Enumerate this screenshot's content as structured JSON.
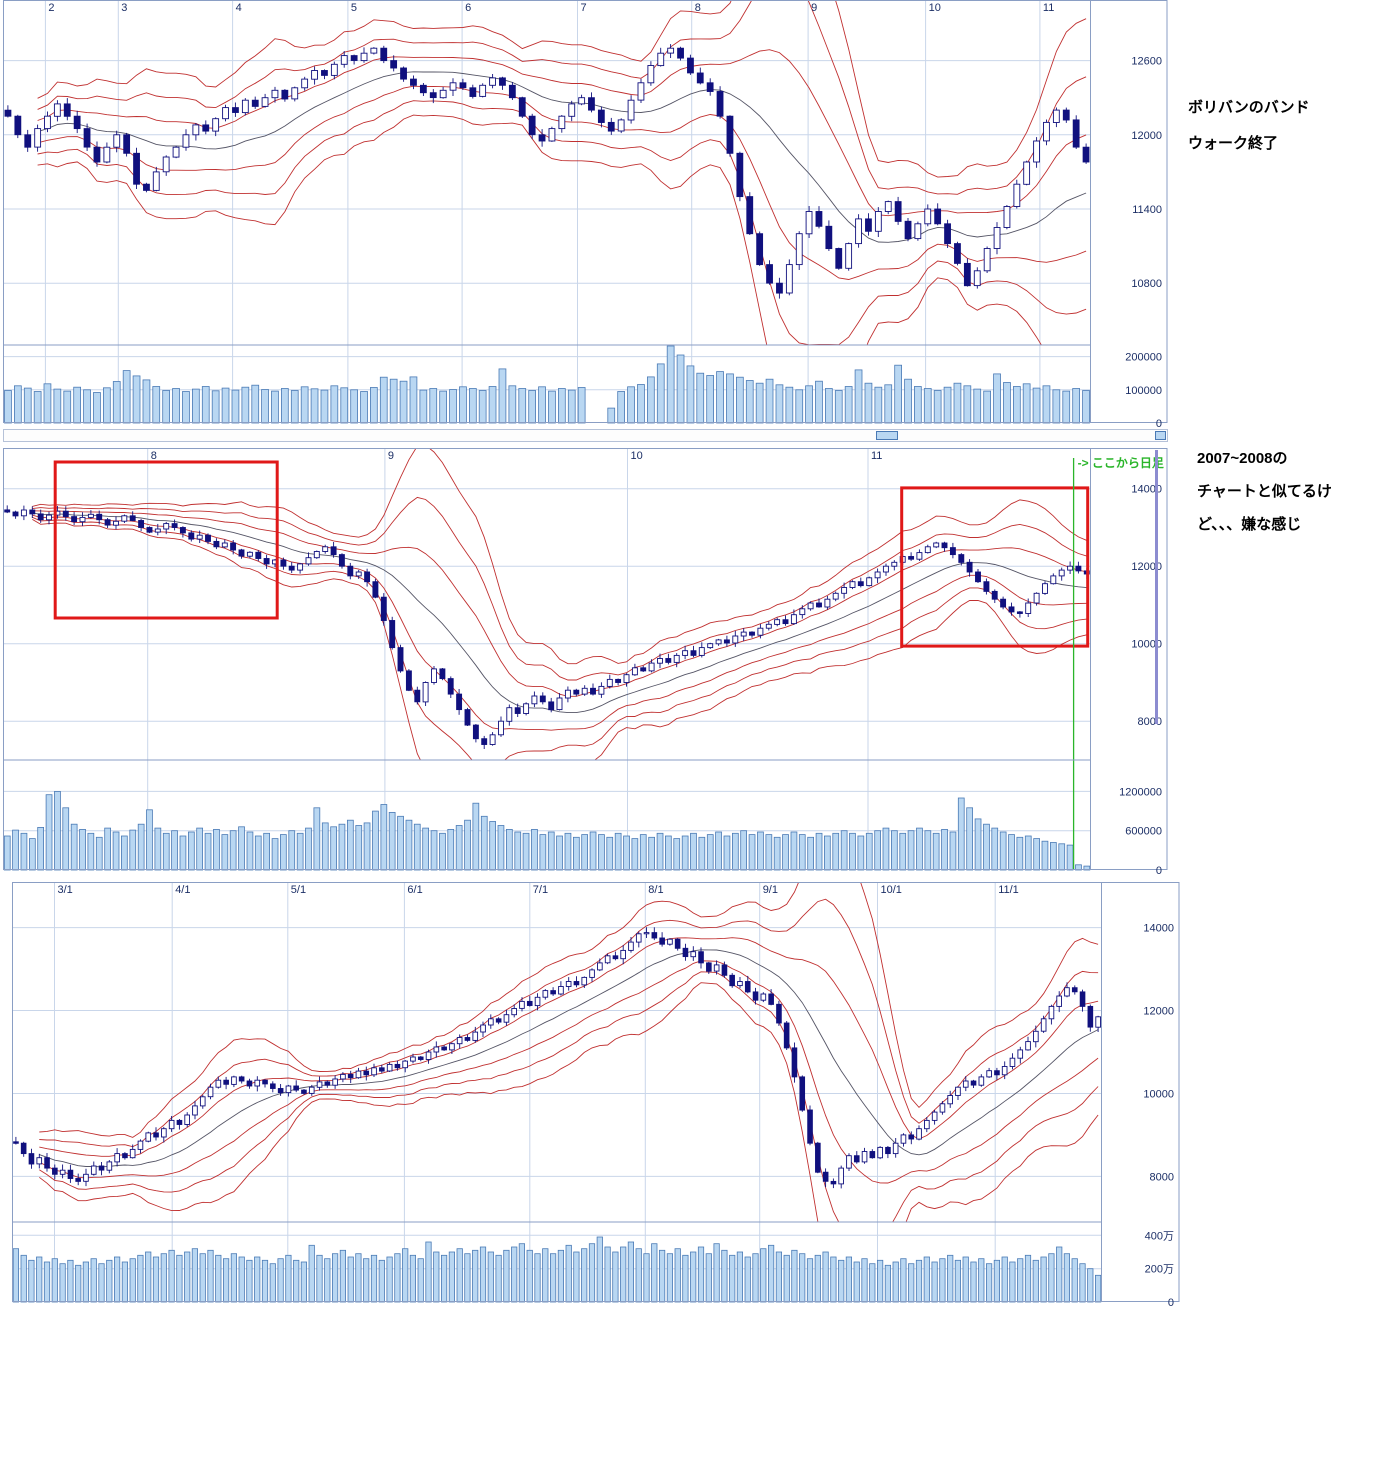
{
  "annotations": {
    "note1": [
      "ボリバンのバンド",
      "ウォーク終了"
    ],
    "note2": [
      "2007~2008の",
      "チャートと似てるけ",
      "ど、、、嫌な感じ"
    ]
  },
  "colors": {
    "candle": "#10107e",
    "band": "#c03030",
    "center": "#555566",
    "volume_fill": "#b9d7f2",
    "volume_stroke": "#4a7ab5",
    "grid": "#c9d6ea",
    "frame": "#8a9ec4",
    "tick_text": "#1c2f66",
    "highlight": "#e01818",
    "green": "#2ab52a"
  },
  "chart_data": [
    {
      "type": "candlestick",
      "x_ticks": [
        {
          "label": "2",
          "pos": 0.039
        },
        {
          "label": "3",
          "pos": 0.106
        },
        {
          "label": "4",
          "pos": 0.211
        },
        {
          "label": "5",
          "pos": 0.317
        },
        {
          "label": "6",
          "pos": 0.422
        },
        {
          "label": "7",
          "pos": 0.528
        },
        {
          "label": "8",
          "pos": 0.633
        },
        {
          "label": "9",
          "pos": 0.74
        },
        {
          "label": "10",
          "pos": 0.848
        },
        {
          "label": "11",
          "pos": 0.953
        }
      ],
      "y_ticks": [
        {
          "label": "12600",
          "value": 12600
        },
        {
          "label": "12000",
          "value": 12000
        },
        {
          "label": "11400",
          "value": 11400
        },
        {
          "label": "10800",
          "value": 10800
        }
      ],
      "volume_ticks": [
        {
          "label": "200000",
          "value": 200000
        },
        {
          "label": "100000",
          "value": 100000
        },
        {
          "label": "0",
          "value": 0
        }
      ],
      "price_range": [
        10300,
        13090
      ],
      "volume_max": 235000,
      "bands": {
        "period": 15,
        "sigmas": [
          1,
          2,
          3
        ]
      },
      "close": [
        12150,
        12000,
        11900,
        12050,
        12150,
        12250,
        12150,
        12050,
        11900,
        11780,
        11900,
        12000,
        11850,
        11600,
        11550,
        11700,
        11820,
        11900,
        12000,
        12080,
        12030,
        12130,
        12220,
        12180,
        12280,
        12230,
        12300,
        12360,
        12290,
        12380,
        12450,
        12520,
        12480,
        12570,
        12640,
        12600,
        12660,
        12700,
        12600,
        12540,
        12450,
        12400,
        12340,
        12300,
        12360,
        12420,
        12380,
        12310,
        12400,
        12460,
        12400,
        12300,
        12150,
        12000,
        11950,
        12050,
        12150,
        12250,
        12300,
        12200,
        12100,
        12030,
        12120,
        12280,
        12420,
        12560,
        12660,
        12700,
        12620,
        12500,
        12420,
        12350,
        12150,
        11850,
        11500,
        11200,
        10950,
        10800,
        10720,
        10950,
        11200,
        11380,
        11260,
        11080,
        10920,
        11120,
        11320,
        11220,
        11380,
        11460,
        11300,
        11160,
        11280,
        11400,
        11280,
        11120,
        10960,
        10780,
        10900,
        11080,
        11250,
        11420,
        11600,
        11780,
        11950,
        12100,
        12200,
        12120,
        11900,
        11780
      ],
      "volume": [
        98000,
        112000,
        105000,
        95000,
        118000,
        102000,
        96000,
        108000,
        100000,
        92000,
        106000,
        125000,
        158000,
        142000,
        130000,
        110000,
        98000,
        104000,
        95000,
        102000,
        110000,
        97000,
        105000,
        99000,
        108000,
        114000,
        101000,
        96000,
        104000,
        98000,
        109000,
        103000,
        99000,
        112000,
        106000,
        100000,
        95000,
        107000,
        138000,
        132000,
        126000,
        139000,
        99000,
        104000,
        96000,
        101000,
        109000,
        104000,
        98000,
        110000,
        163000,
        112000,
        104000,
        98000,
        109000,
        96000,
        104000,
        99000,
        107000,
        0,
        0,
        45000,
        95000,
        109000,
        116000,
        139000,
        178000,
        232000,
        205000,
        172000,
        150000,
        143000,
        155000,
        148000,
        138000,
        128000,
        120000,
        132000,
        115000,
        108000,
        100000,
        112000,
        126000,
        104000,
        98000,
        110000,
        160000,
        120000,
        108000,
        115000,
        174000,
        132000,
        110000,
        104000,
        98000,
        108000,
        120000,
        112000,
        102000,
        96000,
        148000,
        122000,
        110000,
        118000,
        105000,
        112000,
        100000,
        96000,
        104000,
        98000
      ]
    },
    {
      "type": "candlestick",
      "x_ticks": [
        {
          "label": "8",
          "pos": 0.133
        },
        {
          "label": "9",
          "pos": 0.351
        },
        {
          "label": "10",
          "pos": 0.574
        },
        {
          "label": "11",
          "pos": 0.795
        }
      ],
      "y_ticks": [
        {
          "label": "14000",
          "value": 14000
        },
        {
          "label": "12000",
          "value": 12000
        },
        {
          "label": "10000",
          "value": 10000
        },
        {
          "label": "8000",
          "value": 8000
        }
      ],
      "volume_ticks": [
        {
          "label": "1200000",
          "value": 1200000
        },
        {
          "label": "600000",
          "value": 600000
        },
        {
          "label": "0",
          "value": 0
        }
      ],
      "price_range": [
        7000,
        15050
      ],
      "volume_max": 1680000,
      "bands": {
        "period": 15,
        "sigmas": [
          1,
          2,
          3
        ]
      },
      "highlight_boxes": [
        {
          "x0": 0.048,
          "x1": 0.252,
          "y0": 0.045,
          "y1": 0.545
        },
        {
          "x0": 0.826,
          "x1": 0.997,
          "y0": 0.128,
          "y1": 0.635
        }
      ],
      "green_line": {
        "pos": 0.984,
        "label": "-> ここから日足"
      },
      "close": [
        13400,
        13300,
        13450,
        13350,
        13200,
        13320,
        13420,
        13280,
        13150,
        13260,
        13340,
        13200,
        13060,
        13160,
        13300,
        13180,
        13000,
        12880,
        12960,
        13100,
        13000,
        12860,
        12700,
        12800,
        12640,
        12500,
        12600,
        12420,
        12260,
        12360,
        12200,
        12060,
        12160,
        12000,
        11900,
        12060,
        12220,
        12380,
        12500,
        12300,
        12000,
        11750,
        11850,
        11600,
        11200,
        10600,
        9900,
        9300,
        8800,
        8500,
        9000,
        9350,
        9100,
        8700,
        8300,
        7900,
        7550,
        7400,
        7650,
        8000,
        8350,
        8200,
        8450,
        8650,
        8500,
        8300,
        8600,
        8800,
        8700,
        8850,
        8700,
        8900,
        9080,
        9000,
        9200,
        9380,
        9300,
        9500,
        9620,
        9520,
        9700,
        9820,
        9700,
        9900,
        10000,
        10100,
        10020,
        10200,
        10300,
        10220,
        10400,
        10500,
        10620,
        10520,
        10750,
        10900,
        11050,
        10950,
        11150,
        11300,
        11450,
        11600,
        11500,
        11700,
        11850,
        12000,
        12100,
        12250,
        12180,
        12350,
        12500,
        12600,
        12480,
        12300,
        12100,
        11850,
        11600,
        11350,
        11150,
        10950,
        10820,
        10780,
        11050,
        11300,
        11550,
        11750,
        11900,
        12000,
        11880,
        11800
      ],
      "volume": [
        520000,
        610000,
        560000,
        480000,
        650000,
        1150000,
        1200000,
        950000,
        700000,
        620000,
        560000,
        500000,
        640000,
        580000,
        520000,
        610000,
        700000,
        920000,
        640000,
        560000,
        600000,
        520000,
        580000,
        640000,
        560000,
        620000,
        540000,
        600000,
        660000,
        580000,
        520000,
        560000,
        480000,
        540000,
        600000,
        560000,
        640000,
        950000,
        720000,
        660000,
        700000,
        760000,
        680000,
        720000,
        900000,
        1000000,
        880000,
        820000,
        760000,
        700000,
        640000,
        600000,
        560000,
        620000,
        680000,
        760000,
        1020000,
        820000,
        740000,
        680000,
        620000,
        580000,
        560000,
        620000,
        540000,
        580000,
        520000,
        560000,
        500000,
        540000,
        580000,
        540000,
        500000,
        560000,
        520000,
        480000,
        540000,
        500000,
        560000,
        520000,
        480000,
        520000,
        560000,
        500000,
        540000,
        580000,
        520000,
        560000,
        600000,
        540000,
        580000,
        540000,
        500000,
        540000,
        580000,
        540000,
        500000,
        560000,
        520000,
        560000,
        600000,
        560000,
        520000,
        560000,
        600000,
        640000,
        600000,
        560000,
        600000,
        640000,
        600000,
        560000,
        620000,
        580000,
        1100000,
        950000,
        780000,
        700000,
        640000,
        580000,
        540000,
        500000,
        520000,
        480000,
        440000,
        420000,
        400000,
        380000,
        80000,
        60000
      ]
    },
    {
      "type": "candlestick",
      "x_ticks": [
        {
          "label": "3/1",
          "pos": 0.039
        },
        {
          "label": "4/1",
          "pos": 0.147
        },
        {
          "label": "5/1",
          "pos": 0.253
        },
        {
          "label": "6/1",
          "pos": 0.36
        },
        {
          "label": "7/1",
          "pos": 0.475
        },
        {
          "label": "8/1",
          "pos": 0.581
        },
        {
          "label": "9/1",
          "pos": 0.686
        },
        {
          "label": "10/1",
          "pos": 0.794
        },
        {
          "label": "11/1",
          "pos": 0.902
        }
      ],
      "y_ticks": [
        {
          "label": "14000",
          "value": 14000
        },
        {
          "label": "12000",
          "value": 12000
        },
        {
          "label": "10000",
          "value": 10000
        },
        {
          "label": "8000",
          "value": 8000
        }
      ],
      "volume_ticks": [
        {
          "label": "400万",
          "value": 4000000
        },
        {
          "label": "200万",
          "value": 2000000
        },
        {
          "label": "0",
          "value": 0
        }
      ],
      "price_range": [
        6900,
        15100
      ],
      "volume_max": 4800000,
      "bands": {
        "period": 15,
        "sigmas": [
          1,
          2,
          3
        ]
      },
      "close": [
        8800,
        8550,
        8300,
        8450,
        8200,
        8050,
        8150,
        7950,
        7880,
        8050,
        8250,
        8150,
        8350,
        8550,
        8450,
        8650,
        8850,
        9050,
        8950,
        9150,
        9350,
        9250,
        9480,
        9700,
        9920,
        10150,
        10320,
        10220,
        10400,
        10300,
        10180,
        10320,
        10230,
        10120,
        10020,
        10180,
        10080,
        10000,
        10150,
        10280,
        10200,
        10350,
        10460,
        10380,
        10540,
        10450,
        10620,
        10540,
        10700,
        10620,
        10780,
        10880,
        10820,
        11000,
        11120,
        11050,
        11200,
        11350,
        11280,
        11480,
        11650,
        11800,
        11720,
        11900,
        12050,
        12220,
        12120,
        12320,
        12480,
        12400,
        12580,
        12700,
        12620,
        12800,
        12980,
        13150,
        13320,
        13250,
        13450,
        13650,
        13850,
        13880,
        13750,
        13600,
        13720,
        13500,
        13300,
        13420,
        13150,
        12950,
        13100,
        12850,
        12600,
        12700,
        12450,
        12250,
        12400,
        12150,
        11700,
        11100,
        10400,
        9600,
        8800,
        8100,
        7880,
        7820,
        8200,
        8500,
        8350,
        8600,
        8450,
        8700,
        8550,
        8800,
        9000,
        8900,
        9150,
        9350,
        9550,
        9750,
        9950,
        10150,
        10300,
        10200,
        10400,
        10550,
        10450,
        10650,
        10850,
        11050,
        11250,
        11500,
        11800,
        12100,
        12350,
        12550,
        12450,
        12100,
        11600,
        11850
      ],
      "volume": [
        3200000,
        2800000,
        2500000,
        2700000,
        2400000,
        2600000,
        2300000,
        2500000,
        2200000,
        2400000,
        2600000,
        2300000,
        2500000,
        2700000,
        2400000,
        2600000,
        2800000,
        3000000,
        2700000,
        2900000,
        3100000,
        2800000,
        3000000,
        3200000,
        2900000,
        3100000,
        2800000,
        2600000,
        2900000,
        2700000,
        2500000,
        2700000,
        2500000,
        2300000,
        2600000,
        2800000,
        2500000,
        2400000,
        3400000,
        2800000,
        2600000,
        2900000,
        3100000,
        2700000,
        2900000,
        2600000,
        2800000,
        2500000,
        2700000,
        2900000,
        3200000,
        2800000,
        2600000,
        3600000,
        3000000,
        2800000,
        3000000,
        3200000,
        2900000,
        3100000,
        3300000,
        3000000,
        2800000,
        3100000,
        3300000,
        3500000,
        3100000,
        2900000,
        3200000,
        2900000,
        3100000,
        3400000,
        3000000,
        3200000,
        3500000,
        3900000,
        3300000,
        3000000,
        3300000,
        3600000,
        3200000,
        2900000,
        3500000,
        3100000,
        2900000,
        3200000,
        2800000,
        3000000,
        3300000,
        2900000,
        3500000,
        3100000,
        2800000,
        3000000,
        2700000,
        2900000,
        3200000,
        3400000,
        3000000,
        2800000,
        3100000,
        2900000,
        2600000,
        2800000,
        3000000,
        2700000,
        2500000,
        2700000,
        2400000,
        2600000,
        2300000,
        2500000,
        2200000,
        2400000,
        2600000,
        2300000,
        2500000,
        2700000,
        2400000,
        2600000,
        2800000,
        2500000,
        2700000,
        2400000,
        2600000,
        2300000,
        2500000,
        2700000,
        2400000,
        2600000,
        2800000,
        2500000,
        2700000,
        2900000,
        3300000,
        2900000,
        2600000,
        2300000,
        2000000,
        1600000
      ]
    }
  ]
}
